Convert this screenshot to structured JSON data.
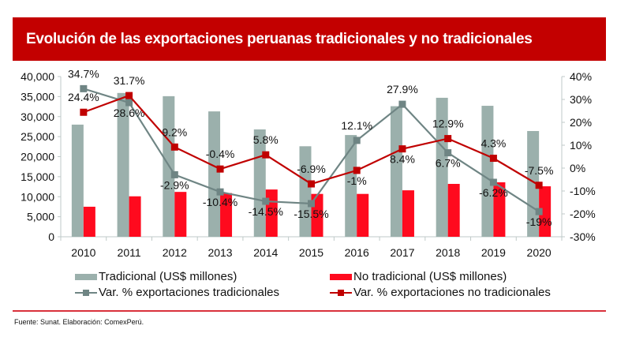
{
  "title": "Evolución de las exportaciones peruanas tradicionales y no tradicionales",
  "footer": "Fuente: Sunat. Elaboración: ComexPerú.",
  "chart_data": {
    "type": "bar",
    "title": "Evolución de las exportaciones peruanas tradicionales y no tradicionales",
    "categories": [
      "2010",
      "2011",
      "2012",
      "2013",
      "2014",
      "2015",
      "2016",
      "2017",
      "2018",
      "2019",
      "2020"
    ],
    "left_axis": {
      "ylim": [
        0,
        40000
      ],
      "ticks": [
        "0",
        "5,000",
        "10,000",
        "15,000",
        "20,000",
        "25,000",
        "30,000",
        "35,000",
        "40,000"
      ]
    },
    "right_axis": {
      "ylim": [
        -30,
        40
      ],
      "ticks": [
        "-30%",
        "-20%",
        "-10%",
        "0%",
        "10%",
        "20%",
        "30%",
        "40%"
      ]
    },
    "series": [
      {
        "name": "Tradicional (US$ millones)",
        "type": "bar",
        "axis": "left",
        "color": "#9bb0ac",
        "values": [
          28000,
          35900,
          35100,
          31300,
          26800,
          22600,
          25400,
          32600,
          34700,
          32700,
          26400
        ]
      },
      {
        "name": "No tradicional (US$ millones)",
        "type": "bar",
        "axis": "left",
        "color": "#ff0a1e",
        "values": [
          7500,
          10100,
          11200,
          10900,
          11800,
          10700,
          10700,
          11600,
          13200,
          13600,
          12600
        ]
      },
      {
        "name": "Var. % exportaciones tradicionales",
        "type": "line",
        "axis": "right",
        "color": "#6f8584",
        "values": [
          34.7,
          28.6,
          -2.9,
          -10.4,
          -14.5,
          -15.5,
          12.1,
          27.9,
          6.7,
          -6.2,
          -19
        ],
        "labels": [
          "34.7%",
          "28.6%",
          "-2.9%",
          "-10.4%",
          "-14.5%",
          "-15.5%",
          "12.1%",
          "27.9%",
          "6.7%",
          "-6.2%",
          "-19%"
        ]
      },
      {
        "name": "Var. % exportaciones no tradicionales",
        "type": "line",
        "axis": "right",
        "color": "#c00000",
        "values": [
          24.4,
          31.7,
          9.2,
          -0.4,
          5.8,
          -6.9,
          -1,
          8.4,
          12.9,
          4.3,
          -7.5
        ],
        "labels": [
          "24.4%",
          "31.7%",
          "9.2%",
          "-0.4%",
          "5.8%",
          "-6.9%",
          "-1%",
          "8.4%",
          "12.9%",
          "4.3%",
          "-7.5%"
        ]
      }
    ],
    "legend": "bottom"
  }
}
